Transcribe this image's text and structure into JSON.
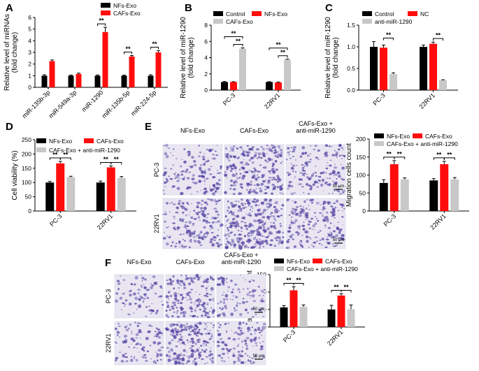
{
  "panel_letters": [
    "A",
    "B",
    "C",
    "D",
    "E",
    "F"
  ],
  "colors": {
    "black": "#000000",
    "red": "#ff0d0d",
    "gray": "#c8c8c8",
    "micro_bg": "#e9e6f2",
    "micro_stain": "#5c4ba6"
  },
  "sig_marker": "**",
  "chart_data": [
    {
      "panel": "A",
      "type": "bar",
      "categories": [
        "miR-135b-3p",
        "miR-549a-3p",
        "miR-1290",
        "miR-135b-5p",
        "miR-224-5p"
      ],
      "series": [
        {
          "name": "NFs-Exo",
          "color": "#000000",
          "values": [
            1.0,
            1.0,
            1.0,
            1.0,
            1.0
          ],
          "err": [
            0.08,
            0.05,
            0.06,
            0.05,
            0.08
          ]
        },
        {
          "name": "CAFs-Exo",
          "color": "#ff0d0d",
          "values": [
            2.25,
            1.15,
            4.75,
            2.65,
            3.0
          ],
          "err": [
            0.1,
            0.07,
            0.4,
            0.08,
            0.15
          ]
        }
      ],
      "ylabel": [
        "Relative level of miRNAs",
        "(fold change)"
      ],
      "ylim": [
        0,
        6
      ],
      "yticks": [
        0,
        1,
        2,
        3,
        4,
        5,
        6
      ],
      "sig": [
        {
          "cat": 2,
          "from": 0,
          "to": 1
        },
        {
          "cat": 3,
          "from": 0,
          "to": 1
        },
        {
          "cat": 4,
          "from": 0,
          "to": 1
        }
      ],
      "legend": "top-left"
    },
    {
      "panel": "B",
      "type": "bar",
      "categories": [
        "PC-3",
        "22RV1"
      ],
      "series": [
        {
          "name": "Control",
          "color": "#000000",
          "values": [
            1.0,
            1.0
          ],
          "err": [
            0.07,
            0.04
          ]
        },
        {
          "name": "NFs-Exo",
          "color": "#ff0d0d",
          "values": [
            1.0,
            0.95
          ],
          "err": [
            0.04,
            0.05
          ]
        },
        {
          "name": "CAFs-Exo",
          "color": "#c8c8c8",
          "values": [
            5.1,
            3.75
          ],
          "err": [
            0.1,
            0.06
          ]
        }
      ],
      "ylabel": [
        "Relative level of miR-1290",
        "(fold change)"
      ],
      "ylim": [
        0,
        8
      ],
      "yticks": [
        0,
        2,
        4,
        6,
        8
      ],
      "sig": [
        {
          "cat": 0,
          "from": 0,
          "to": 2,
          "level": 1
        },
        {
          "cat": 0,
          "from": 1,
          "to": 2,
          "level": 0
        },
        {
          "cat": 1,
          "from": 0,
          "to": 2,
          "level": 1
        },
        {
          "cat": 1,
          "from": 1,
          "to": 2,
          "level": 0
        }
      ],
      "legend": "top"
    },
    {
      "panel": "C",
      "type": "bar",
      "categories": [
        "PC-3",
        "22RV1"
      ],
      "series": [
        {
          "name": "Control",
          "color": "#000000",
          "values": [
            1.0,
            1.0
          ],
          "err": [
            0.12,
            0.04
          ]
        },
        {
          "name": "NC",
          "color": "#ff0d0d",
          "values": [
            0.98,
            1.07
          ],
          "err": [
            0.06,
            0.04
          ]
        },
        {
          "name": "anti-miR-1290",
          "color": "#c8c8c8",
          "values": [
            0.37,
            0.23
          ],
          "err": [
            0.03,
            0.01
          ]
        }
      ],
      "ylabel": [
        "Relative level of miR-1290",
        "(fold change)"
      ],
      "ylim": [
        0,
        1.5
      ],
      "yticks": [
        0.0,
        0.5,
        1.0,
        1.5
      ],
      "sig": [
        {
          "cat": 0,
          "from": 1,
          "to": 2,
          "level": 0
        },
        {
          "cat": 1,
          "from": 1,
          "to": 2,
          "level": 0
        }
      ],
      "legend": "top"
    },
    {
      "panel": "D",
      "type": "bar",
      "categories": [
        "PC-3",
        "22RV1"
      ],
      "series": [
        {
          "name": "NFs-Exo",
          "color": "#000000",
          "values": [
            100,
            100
          ],
          "err": [
            4,
            5
          ]
        },
        {
          "name": "CAFs-Exo",
          "color": "#ff0d0d",
          "values": [
            167,
            153
          ],
          "err": [
            7,
            5
          ]
        },
        {
          "name": "CAFs-Exo + anti-miR-1290",
          "color": "#c8c8c8",
          "values": [
            119,
            116
          ],
          "err": [
            3,
            5
          ]
        }
      ],
      "ylabel": [
        "Cell viability (%)"
      ],
      "ylim": [
        0,
        250
      ],
      "yticks": [
        0,
        50,
        100,
        150,
        200,
        250
      ],
      "sig": [
        {
          "cat": 0,
          "from": 0,
          "to": 1,
          "level": 0
        },
        {
          "cat": 0,
          "from": 1,
          "to": 2,
          "level": 0
        },
        {
          "cat": 1,
          "from": 0,
          "to": 1,
          "level": 0
        },
        {
          "cat": 1,
          "from": 1,
          "to": 2,
          "level": 0
        }
      ],
      "legend": "top"
    },
    {
      "panel": "E",
      "type": "bar",
      "categories": [
        "PC-3",
        "22RV1"
      ],
      "series": [
        {
          "name": "NFs-Exo",
          "color": "#000000",
          "values": [
            78,
            85
          ],
          "err": [
            9,
            5
          ]
        },
        {
          "name": "CAFs-Exo",
          "color": "#ff0d0d",
          "values": [
            130,
            130
          ],
          "err": [
            10,
            8
          ]
        },
        {
          "name": "CAFs-Exo + anti-miR-1290",
          "color": "#c8c8c8",
          "values": [
            88,
            88
          ],
          "err": [
            4,
            5
          ]
        }
      ],
      "ylabel": [
        "Migration cells count"
      ],
      "ylim": [
        0,
        200
      ],
      "yticks": [
        0,
        50,
        100,
        150,
        200
      ],
      "sig": [
        {
          "cat": 0,
          "from": 0,
          "to": 1,
          "level": 0
        },
        {
          "cat": 0,
          "from": 1,
          "to": 2,
          "level": 0
        },
        {
          "cat": 1,
          "from": 0,
          "to": 1,
          "level": 0
        },
        {
          "cat": 1,
          "from": 1,
          "to": 2,
          "level": 0
        }
      ],
      "legend": "top"
    },
    {
      "panel": "F",
      "type": "bar",
      "categories": [
        "PC-3",
        "22RV1"
      ],
      "series": [
        {
          "name": "NFs-Exo",
          "color": "#000000",
          "values": [
            56,
            50
          ],
          "err": [
            5,
            12
          ]
        },
        {
          "name": "CAFs-Exo",
          "color": "#ff0d0d",
          "values": [
            105,
            90
          ],
          "err": [
            10,
            5
          ]
        },
        {
          "name": "CAFs-Exo + anti-miR-1290",
          "color": "#c8c8c8",
          "values": [
            58,
            51
          ],
          "err": [
            5,
            12
          ]
        }
      ],
      "ylabel": [
        "Invasion cells count"
      ],
      "ylim": [
        0,
        150
      ],
      "yticks": [
        0,
        50,
        100,
        150
      ],
      "sig": [
        {
          "cat": 0,
          "from": 0,
          "to": 1,
          "level": 0
        },
        {
          "cat": 0,
          "from": 1,
          "to": 2,
          "level": 0
        },
        {
          "cat": 1,
          "from": 0,
          "to": 1,
          "level": 0
        },
        {
          "cat": 1,
          "from": 1,
          "to": 2,
          "level": 0
        }
      ],
      "legend": "top"
    }
  ],
  "micrographs": [
    {
      "panel": "E",
      "columns": [
        "NFs-Exo",
        "CAFs-Exo",
        "CAFs-Exo + anti-miR-1290"
      ],
      "rows": [
        "PC-3",
        "22RV1"
      ],
      "scale_bar": "50 µm",
      "density": [
        [
          0.45,
          0.75,
          0.5
        ],
        [
          0.55,
          0.9,
          0.6
        ]
      ]
    },
    {
      "panel": "F",
      "columns": [
        "NFs-Exo",
        "CAFs-Exo",
        "CAFs-Exo + anti-miR-1290"
      ],
      "rows": [
        "PC-3",
        "22RV1"
      ],
      "scale_bar": "50 µm",
      "density": [
        [
          0.35,
          0.75,
          0.4
        ],
        [
          0.45,
          0.85,
          0.5
        ]
      ]
    }
  ]
}
